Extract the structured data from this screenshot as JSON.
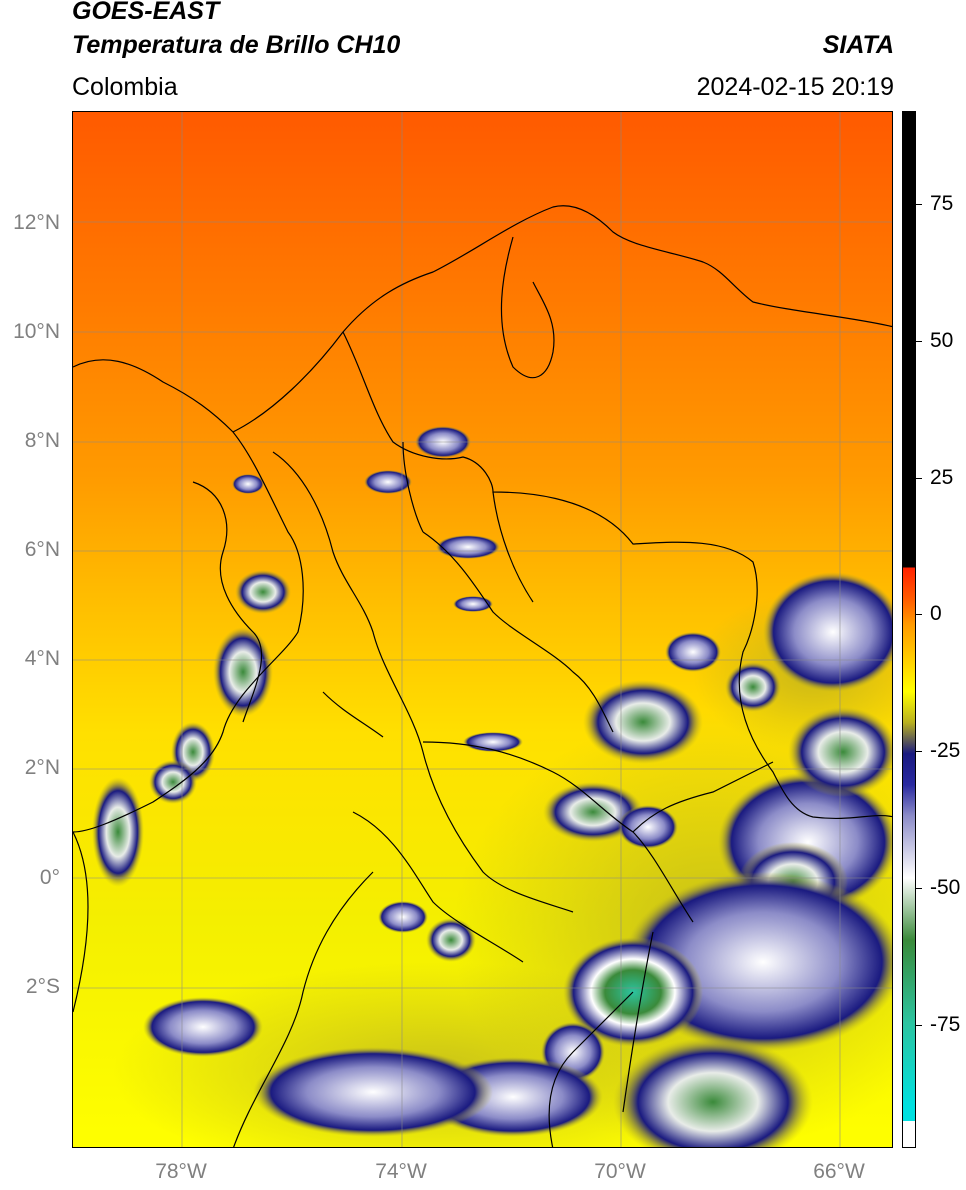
{
  "header": {
    "satellite": "GOES-EAST",
    "product": "Temperatura de Brillo CH10",
    "organization": "SIATA",
    "region": "Colombia",
    "timestamp": "2024-02-15 20:19"
  },
  "map": {
    "latitude_labels": [
      "12°N",
      "10°N",
      "8°N",
      "6°N",
      "4°N",
      "2°N",
      "0°",
      "2°S"
    ],
    "longitude_labels": [
      "78°W",
      "74°W",
      "70°W",
      "66°W"
    ]
  },
  "colorbar": {
    "tick_labels": [
      "75",
      "50",
      "25",
      "0",
      "-25",
      "-50",
      "-75"
    ],
    "colors": {
      "warm_top": "#ff5a00",
      "orange": "#ff9a00",
      "yellow": "#ffff00",
      "olive": "#b8b020",
      "navy": "#1a1a80",
      "white": "#ffffff",
      "green": "#3a8a3a",
      "teal": "#2cc4a0",
      "cyan": "#00e0e0",
      "red": "#ff2000",
      "black": "#000000"
    }
  }
}
